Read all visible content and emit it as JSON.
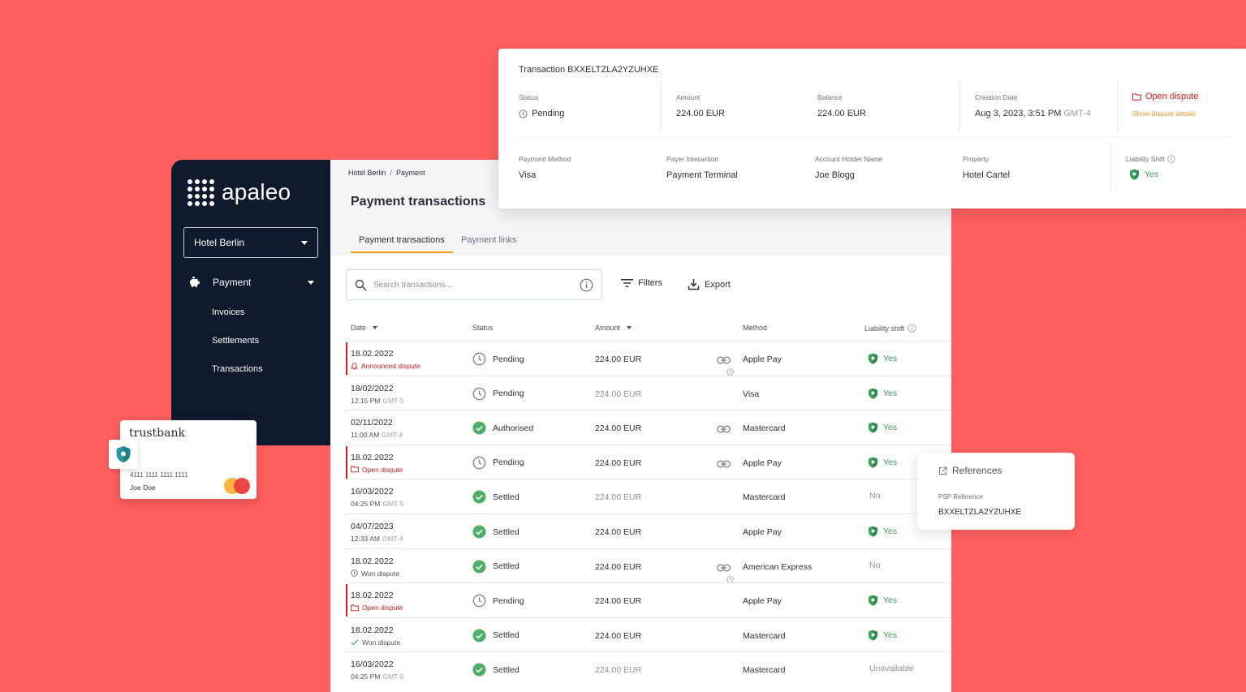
{
  "brand": {
    "logo_text": "apaleo",
    "accent": "#f59e0b",
    "danger": "#c81e1e",
    "success": "#3a9b4f"
  },
  "sidebar": {
    "property": "Hotel Berlin",
    "nav": {
      "payment": "Payment",
      "sub": [
        "Invoices",
        "Settlements",
        "Transactions"
      ]
    }
  },
  "main": {
    "breadcrumb": [
      "Hotel Berlin",
      "Payment"
    ],
    "breadcrumb_sep": "/",
    "title": "Payment transactions",
    "tabs": [
      "Payment transactions",
      "Payment links"
    ],
    "search_placeholder": "Search transactions...",
    "filters_label": "Filters",
    "export_label": "Export",
    "columns": [
      "Date",
      "Status",
      "Amount",
      "Method",
      "Liability shift"
    ]
  },
  "rows": [
    {
      "date": "18.02.2022",
      "sub": "Announced dispute",
      "sub_kind": "announced",
      "tz": "",
      "status": "Pending",
      "status_icon": "clock-icon",
      "amount": "224.00 EUR",
      "amount_muted": false,
      "link": true,
      "link_clock": true,
      "method": "Apple Pay",
      "liability": "Yes",
      "liability_shield": true,
      "flag": true
    },
    {
      "date": "18/02/2022",
      "sub": "12:15 PM",
      "sub_kind": "time",
      "tz": "GMT-5",
      "status": "Pending",
      "status_icon": "clock-icon",
      "amount": "224.00 EUR",
      "amount_muted": true,
      "link": false,
      "link_clock": false,
      "method": "Visa",
      "liability": "Yes",
      "liability_shield": true,
      "flag": false
    },
    {
      "date": "02/11/2022",
      "sub": "11:00 AM",
      "sub_kind": "time",
      "tz": "GMT-4",
      "status": "Authorised",
      "status_icon": "check-circle-icon",
      "amount": "224.00 EUR",
      "amount_muted": false,
      "link": true,
      "link_clock": false,
      "method": "Mastercard",
      "liability": "Yes",
      "liability_shield": true,
      "flag": false
    },
    {
      "date": "18.02.2022",
      "sub": "Open dispute",
      "sub_kind": "open",
      "tz": "",
      "status": "Pending",
      "status_icon": "clock-icon",
      "amount": "224.00 EUR",
      "amount_muted": false,
      "link": true,
      "link_clock": false,
      "method": "Apple Pay",
      "liability": "Yes",
      "liability_shield": true,
      "flag": true
    },
    {
      "date": "16/03/2022",
      "sub": "04:25 PM",
      "sub_kind": "time",
      "tz": "GMT-5",
      "status": "Settled",
      "status_icon": "check-circle-icon",
      "amount": "224.00 EUR",
      "amount_muted": true,
      "link": false,
      "link_clock": false,
      "method": "Mastercard",
      "liability": "No",
      "liability_shield": false,
      "flag": false
    },
    {
      "date": "04/07/2023",
      "sub": "12:33 AM",
      "sub_kind": "time",
      "tz": "GMT-4",
      "status": "Settled",
      "status_icon": "check-circle-icon",
      "amount": "224.00 EUR",
      "amount_muted": false,
      "link": false,
      "link_clock": false,
      "method": "Apple Pay",
      "liability": "Yes",
      "liability_shield": true,
      "flag": false
    },
    {
      "date": "18.02.2022",
      "sub": "Won dispute",
      "sub_kind": "won-clock",
      "tz": "",
      "status": "Settled",
      "status_icon": "check-circle-icon",
      "amount": "224.00 EUR",
      "amount_muted": false,
      "link": true,
      "link_clock": true,
      "method": "American Express",
      "liability": "No",
      "liability_shield": false,
      "flag": false
    },
    {
      "date": "18.02.2022",
      "sub": "Open dispute",
      "sub_kind": "open",
      "tz": "",
      "status": "Pending",
      "status_icon": "clock-icon",
      "amount": "224.00 EUR",
      "amount_muted": false,
      "link": false,
      "link_clock": false,
      "method": "Apple Pay",
      "liability": "Yes",
      "liability_shield": true,
      "flag": true
    },
    {
      "date": "18.02.2022",
      "sub": "Won dispute",
      "sub_kind": "won-check",
      "tz": "",
      "status": "Settled",
      "status_icon": "check-circle-icon",
      "amount": "224.00 EUR",
      "amount_muted": false,
      "link": false,
      "link_clock": false,
      "method": "Mastercard",
      "liability": "Yes",
      "liability_shield": true,
      "flag": false
    },
    {
      "date": "16/03/2022",
      "sub": "04:25 PM",
      "sub_kind": "time",
      "tz": "GMT-5",
      "status": "Settled",
      "status_icon": "check-circle-icon",
      "amount": "224.00 EUR",
      "amount_muted": true,
      "link": false,
      "link_clock": false,
      "method": "Mastercard",
      "liability": "Unavailable",
      "liability_shield": false,
      "flag": false
    }
  ],
  "detail": {
    "title": "Transaction BXXELTZLA2YZUHXE",
    "status_label": "Status",
    "status": "Pending",
    "amount_label": "Amount",
    "amount": "224.00 EUR",
    "balance_label": "Balance",
    "balance": "224.00 EUR",
    "created_label": "Creation Date",
    "created": "Aug 3, 2023, 3:51 PM",
    "created_tz": "GMT-4",
    "dispute_link": "Open dispute",
    "dispute_details": "Show dispute details",
    "method_label": "Payment Method",
    "method": "Visa",
    "interaction_label": "Payer Interaction",
    "interaction": "Payment Terminal",
    "holder_label": "Account Holder Name",
    "holder": "Joe Blogg",
    "property_label": "Property",
    "property": "Hotel Cartel",
    "liability_label": "Liability Shift",
    "liability": "Yes"
  },
  "card": {
    "bank": "trustbank",
    "number": "4111 1111 1111 1111",
    "holder": "Joe Doe",
    "mc_left": "#f6b73c",
    "mc_right": "#eb3b3b"
  },
  "references": {
    "title": "References",
    "psp_label": "PSP Reference",
    "psp_value": "BXXELTZLA2YZUHXE"
  }
}
